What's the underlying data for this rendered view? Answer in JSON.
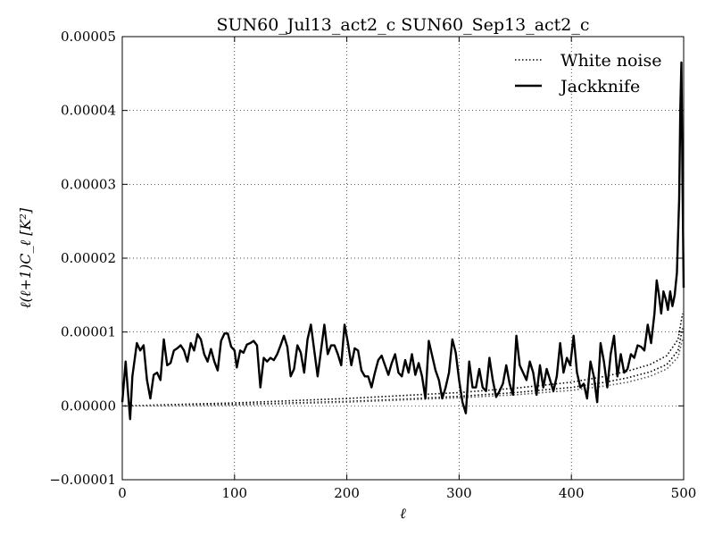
{
  "chart_data": {
    "type": "line",
    "title": "SUN60_Jul13_act2_c SUN60_Sep13_act2_c",
    "xlabel": "ℓ",
    "ylabel": "ℓ(ℓ+1)C_ℓ [K²]",
    "xlim": [
      0,
      500
    ],
    "ylim": [
      -1e-05,
      5e-05
    ],
    "xticks": [
      0,
      100,
      200,
      300,
      400,
      500
    ],
    "xtick_labels": [
      "0",
      "100",
      "200",
      "300",
      "400",
      "500"
    ],
    "yticks": [
      -1e-05,
      0,
      1e-05,
      2e-05,
      3e-05,
      4e-05,
      5e-05
    ],
    "ytick_labels": [
      "−0.00001",
      "0.00000",
      "0.00001",
      "0.00002",
      "0.00003",
      "0.00004",
      "0.00005"
    ],
    "grid": true,
    "legend_position": "top-right",
    "series": [
      {
        "name": "White noise",
        "style": "dotted",
        "color": "#000000",
        "points": [
          [
            2,
            0.0
          ],
          [
            50,
            1e-07
          ],
          [
            100,
            2e-07
          ],
          [
            150,
            4e-07
          ],
          [
            200,
            6e-07
          ],
          [
            250,
            9e-07
          ],
          [
            300,
            1.3e-06
          ],
          [
            350,
            1.8e-06
          ],
          [
            400,
            2.5e-06
          ],
          [
            430,
            3.2e-06
          ],
          [
            450,
            3.8e-06
          ],
          [
            470,
            4.6e-06
          ],
          [
            485,
            5.6e-06
          ],
          [
            495,
            7.5e-06
          ],
          [
            499,
            1.05e-05
          ]
        ]
      },
      {
        "name": "White noise",
        "style": "dotted",
        "color": "#000000",
        "points": [
          [
            2,
            0.0
          ],
          [
            50,
            2e-07
          ],
          [
            100,
            4e-07
          ],
          [
            150,
            7e-07
          ],
          [
            200,
            1e-06
          ],
          [
            250,
            1.4e-06
          ],
          [
            300,
            1.8e-06
          ],
          [
            350,
            2.4e-06
          ],
          [
            400,
            3.2e-06
          ],
          [
            430,
            4e-06
          ],
          [
            450,
            4.7e-06
          ],
          [
            470,
            5.6e-06
          ],
          [
            485,
            6.8e-06
          ],
          [
            495,
            9e-06
          ],
          [
            499,
            1.25e-05
          ]
        ]
      },
      {
        "name": "White noise",
        "style": "dotted",
        "color": "#555555",
        "points": [
          [
            2,
            0.0
          ],
          [
            50,
            5e-08
          ],
          [
            100,
            1e-07
          ],
          [
            150,
            3e-07
          ],
          [
            200,
            5e-07
          ],
          [
            250,
            8e-07
          ],
          [
            300,
            1.1e-06
          ],
          [
            350,
            1.5e-06
          ],
          [
            400,
            2.1e-06
          ],
          [
            430,
            2.7e-06
          ],
          [
            450,
            3.2e-06
          ],
          [
            470,
            4e-06
          ],
          [
            485,
            5e-06
          ],
          [
            495,
            6.6e-06
          ],
          [
            499,
            9e-06
          ]
        ]
      },
      {
        "name": "Jackknife",
        "style": "solid",
        "color": "#000000",
        "points": [
          [
            0,
            5e-07
          ],
          [
            3,
            6e-06
          ],
          [
            5,
            2e-06
          ],
          [
            7,
            -1.8e-06
          ],
          [
            9,
            4e-06
          ],
          [
            13,
            8.5e-06
          ],
          [
            16,
            7.5e-06
          ],
          [
            19,
            8.2e-06
          ],
          [
            22,
            3.5e-06
          ],
          [
            25,
            1e-06
          ],
          [
            28,
            4.2e-06
          ],
          [
            31,
            4.5e-06
          ],
          [
            34,
            3.5e-06
          ],
          [
            37,
            9e-06
          ],
          [
            40,
            5.5e-06
          ],
          [
            43,
            5.8e-06
          ],
          [
            46,
            7.5e-06
          ],
          [
            49,
            7.8e-06
          ],
          [
            52,
            8.2e-06
          ],
          [
            55,
            7.5e-06
          ],
          [
            58,
            6e-06
          ],
          [
            61,
            8.5e-06
          ],
          [
            64,
            7.5e-06
          ],
          [
            67,
            9.7e-06
          ],
          [
            70,
            9e-06
          ],
          [
            73,
            7e-06
          ],
          [
            76,
            6e-06
          ],
          [
            79,
            7.7e-06
          ],
          [
            82,
            6e-06
          ],
          [
            85,
            4.8e-06
          ],
          [
            88,
            8.8e-06
          ],
          [
            91,
            9.8e-06
          ],
          [
            94,
            9.8e-06
          ],
          [
            97,
            8e-06
          ],
          [
            100,
            7.5e-06
          ],
          [
            102,
            5.2e-06
          ],
          [
            105,
            7.5e-06
          ],
          [
            108,
            7.2e-06
          ],
          [
            111,
            8.3e-06
          ],
          [
            114,
            8.5e-06
          ],
          [
            117,
            8.8e-06
          ],
          [
            120,
            8.2e-06
          ],
          [
            123,
            2.5e-06
          ],
          [
            126,
            6.5e-06
          ],
          [
            129,
            6e-06
          ],
          [
            132,
            6.5e-06
          ],
          [
            135,
            6.2e-06
          ],
          [
            138,
            7e-06
          ],
          [
            141,
            8.2e-06
          ],
          [
            144,
            9.5e-06
          ],
          [
            147,
            8e-06
          ],
          [
            150,
            4e-06
          ],
          [
            153,
            5e-06
          ],
          [
            156,
            8.2e-06
          ],
          [
            159,
            7.2e-06
          ],
          [
            162,
            4.5e-06
          ],
          [
            165,
            9e-06
          ],
          [
            168,
            1.1e-05
          ],
          [
            171,
            7.5e-06
          ],
          [
            174,
            4e-06
          ],
          [
            177,
            7.5e-06
          ],
          [
            180,
            1.1e-05
          ],
          [
            183,
            7e-06
          ],
          [
            186,
            8.2e-06
          ],
          [
            189,
            8.2e-06
          ],
          [
            192,
            7e-06
          ],
          [
            195,
            5.5e-06
          ],
          [
            198,
            1.1e-05
          ],
          [
            201,
            8.5e-06
          ],
          [
            204,
            5.5e-06
          ],
          [
            207,
            7.8e-06
          ],
          [
            210,
            7.5e-06
          ],
          [
            213,
            4.8e-06
          ],
          [
            216,
            4e-06
          ],
          [
            219,
            4e-06
          ],
          [
            222,
            2.5e-06
          ],
          [
            225,
            4.5e-06
          ],
          [
            228,
            6.2e-06
          ],
          [
            231,
            6.8e-06
          ],
          [
            234,
            5.5e-06
          ],
          [
            237,
            4.2e-06
          ],
          [
            240,
            5.8e-06
          ],
          [
            243,
            7e-06
          ],
          [
            246,
            4.5e-06
          ],
          [
            249,
            4e-06
          ],
          [
            252,
            6.2e-06
          ],
          [
            255,
            4.5e-06
          ],
          [
            258,
            7e-06
          ],
          [
            261,
            4.2e-06
          ],
          [
            264,
            5.8e-06
          ],
          [
            267,
            4e-06
          ],
          [
            270,
            1e-06
          ],
          [
            273,
            8.8e-06
          ],
          [
            276,
            6.8e-06
          ],
          [
            279,
            4.8e-06
          ],
          [
            282,
            3.5e-06
          ],
          [
            285,
            1e-06
          ],
          [
            288,
            2.5e-06
          ],
          [
            291,
            4.5e-06
          ],
          [
            294,
            9e-06
          ],
          [
            297,
            7.2e-06
          ],
          [
            300,
            3.5e-06
          ],
          [
            303,
            5e-07
          ],
          [
            306,
            -1e-06
          ],
          [
            309,
            6e-06
          ],
          [
            312,
            2.5e-06
          ],
          [
            315,
            2.5e-06
          ],
          [
            318,
            5e-06
          ],
          [
            321,
            2.5e-06
          ],
          [
            324,
            2e-06
          ],
          [
            327,
            6.5e-06
          ],
          [
            330,
            3.5e-06
          ],
          [
            333,
            1.2e-06
          ],
          [
            336,
            2e-06
          ],
          [
            339,
            3e-06
          ],
          [
            342,
            5.5e-06
          ],
          [
            345,
            3e-06
          ],
          [
            348,
            1.5e-06
          ],
          [
            351,
            9.5e-06
          ],
          [
            354,
            5.5e-06
          ],
          [
            357,
            4.5e-06
          ],
          [
            360,
            3.5e-06
          ],
          [
            363,
            6e-06
          ],
          [
            366,
            4.5e-06
          ],
          [
            369,
            1.5e-06
          ],
          [
            372,
            5.5e-06
          ],
          [
            375,
            2.5e-06
          ],
          [
            378,
            5e-06
          ],
          [
            381,
            3.5e-06
          ],
          [
            384,
            2e-06
          ],
          [
            387,
            4e-06
          ],
          [
            390,
            8.5e-06
          ],
          [
            393,
            4.5e-06
          ],
          [
            396,
            6.5e-06
          ],
          [
            399,
            5.5e-06
          ],
          [
            402,
            9.5e-06
          ],
          [
            405,
            4.5e-06
          ],
          [
            408,
            2.5e-06
          ],
          [
            411,
            3e-06
          ],
          [
            414,
            1e-06
          ],
          [
            417,
            6e-06
          ],
          [
            420,
            4e-06
          ],
          [
            423,
            5e-07
          ],
          [
            426,
            8.5e-06
          ],
          [
            429,
            6e-06
          ],
          [
            432,
            2.5e-06
          ],
          [
            435,
            7e-06
          ],
          [
            438,
            9.5e-06
          ],
          [
            441,
            4e-06
          ],
          [
            444,
            7e-06
          ],
          [
            447,
            4.5e-06
          ],
          [
            450,
            5e-06
          ],
          [
            453,
            7e-06
          ],
          [
            456,
            6.5e-06
          ],
          [
            459,
            8.2e-06
          ],
          [
            462,
            8e-06
          ],
          [
            465,
            7.5e-06
          ],
          [
            468,
            1.1e-05
          ],
          [
            471,
            8.5e-06
          ],
          [
            474,
            1.25e-05
          ],
          [
            476,
            1.7e-05
          ],
          [
            478,
            1.5e-05
          ],
          [
            480,
            1.25e-05
          ],
          [
            482,
            1.55e-05
          ],
          [
            484,
            1.45e-05
          ],
          [
            486,
            1.3e-05
          ],
          [
            488,
            1.55e-05
          ],
          [
            490,
            1.35e-05
          ],
          [
            492,
            1.5e-05
          ],
          [
            494,
            1.8e-05
          ],
          [
            496,
            2.8e-05
          ],
          [
            497,
            4e-05
          ],
          [
            498,
            4.65e-05
          ],
          [
            499,
            3e-05
          ],
          [
            500,
            1.6e-05
          ]
        ]
      }
    ]
  }
}
